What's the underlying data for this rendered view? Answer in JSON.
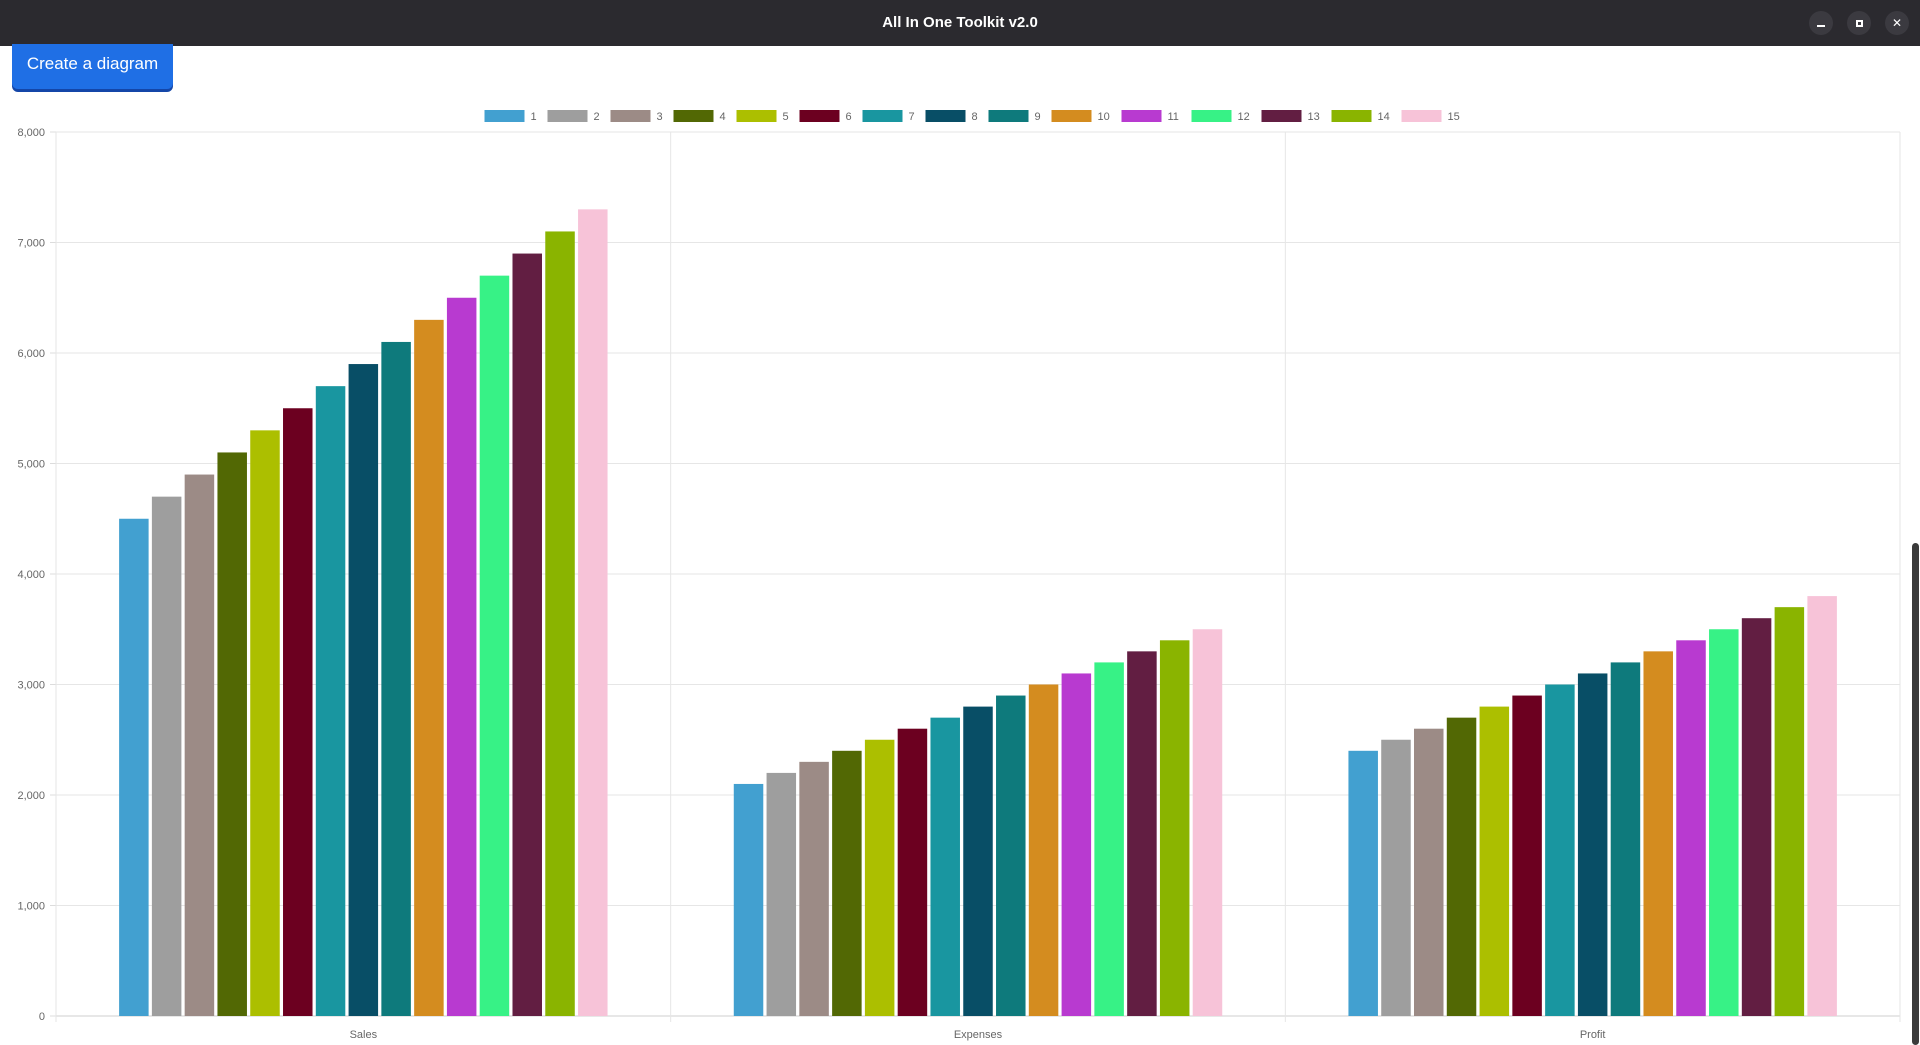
{
  "window": {
    "title": "All In One Toolkit v2.0",
    "minimize_icon": "minimize-icon",
    "maximize_icon": "maximize-icon",
    "close_icon": "close-icon"
  },
  "toolbar": {
    "create_label": "Create a diagram",
    "button_color": "#1f6fe5"
  },
  "chart_data": {
    "type": "bar",
    "categories": [
      "Sales",
      "Expenses",
      "Profit"
    ],
    "ylim": [
      0,
      8000
    ],
    "yticks": [
      "0",
      "1,000",
      "2,000",
      "3,000",
      "4,000",
      "5,000",
      "6,000",
      "7,000",
      "8,000"
    ],
    "ytick_values": [
      0,
      1000,
      2000,
      3000,
      4000,
      5000,
      6000,
      7000,
      8000
    ],
    "grid": true,
    "legend_position": "top-center",
    "series": [
      {
        "name": "1",
        "color": "#42a0d0",
        "values": [
          4500,
          2100,
          2400
        ]
      },
      {
        "name": "2",
        "color": "#9e9e9e",
        "values": [
          4700,
          2200,
          2500
        ]
      },
      {
        "name": "3",
        "color": "#9c8b86",
        "values": [
          4900,
          2300,
          2600
        ]
      },
      {
        "name": "4",
        "color": "#526804",
        "values": [
          5100,
          2400,
          2700
        ]
      },
      {
        "name": "5",
        "color": "#acbf00",
        "values": [
          5300,
          2500,
          2800
        ]
      },
      {
        "name": "6",
        "color": "#6c0020",
        "values": [
          5500,
          2600,
          2900
        ]
      },
      {
        "name": "7",
        "color": "#1996a0",
        "values": [
          5700,
          2700,
          3000
        ]
      },
      {
        "name": "8",
        "color": "#084e66",
        "values": [
          5900,
          2800,
          3100
        ]
      },
      {
        "name": "9",
        "color": "#0e7a7c",
        "values": [
          6100,
          2900,
          3200
        ]
      },
      {
        "name": "10",
        "color": "#d48c1f",
        "values": [
          6300,
          3000,
          3300
        ]
      },
      {
        "name": "11",
        "color": "#b83ad0",
        "values": [
          6500,
          3100,
          3400
        ]
      },
      {
        "name": "12",
        "color": "#37f286",
        "values": [
          6700,
          3200,
          3500
        ]
      },
      {
        "name": "13",
        "color": "#621e42",
        "values": [
          6900,
          3300,
          3600
        ]
      },
      {
        "name": "14",
        "color": "#8ab400",
        "values": [
          7100,
          3400,
          3700
        ]
      },
      {
        "name": "15",
        "color": "#f7c3d8",
        "values": [
          7300,
          3500,
          3800
        ]
      }
    ]
  }
}
